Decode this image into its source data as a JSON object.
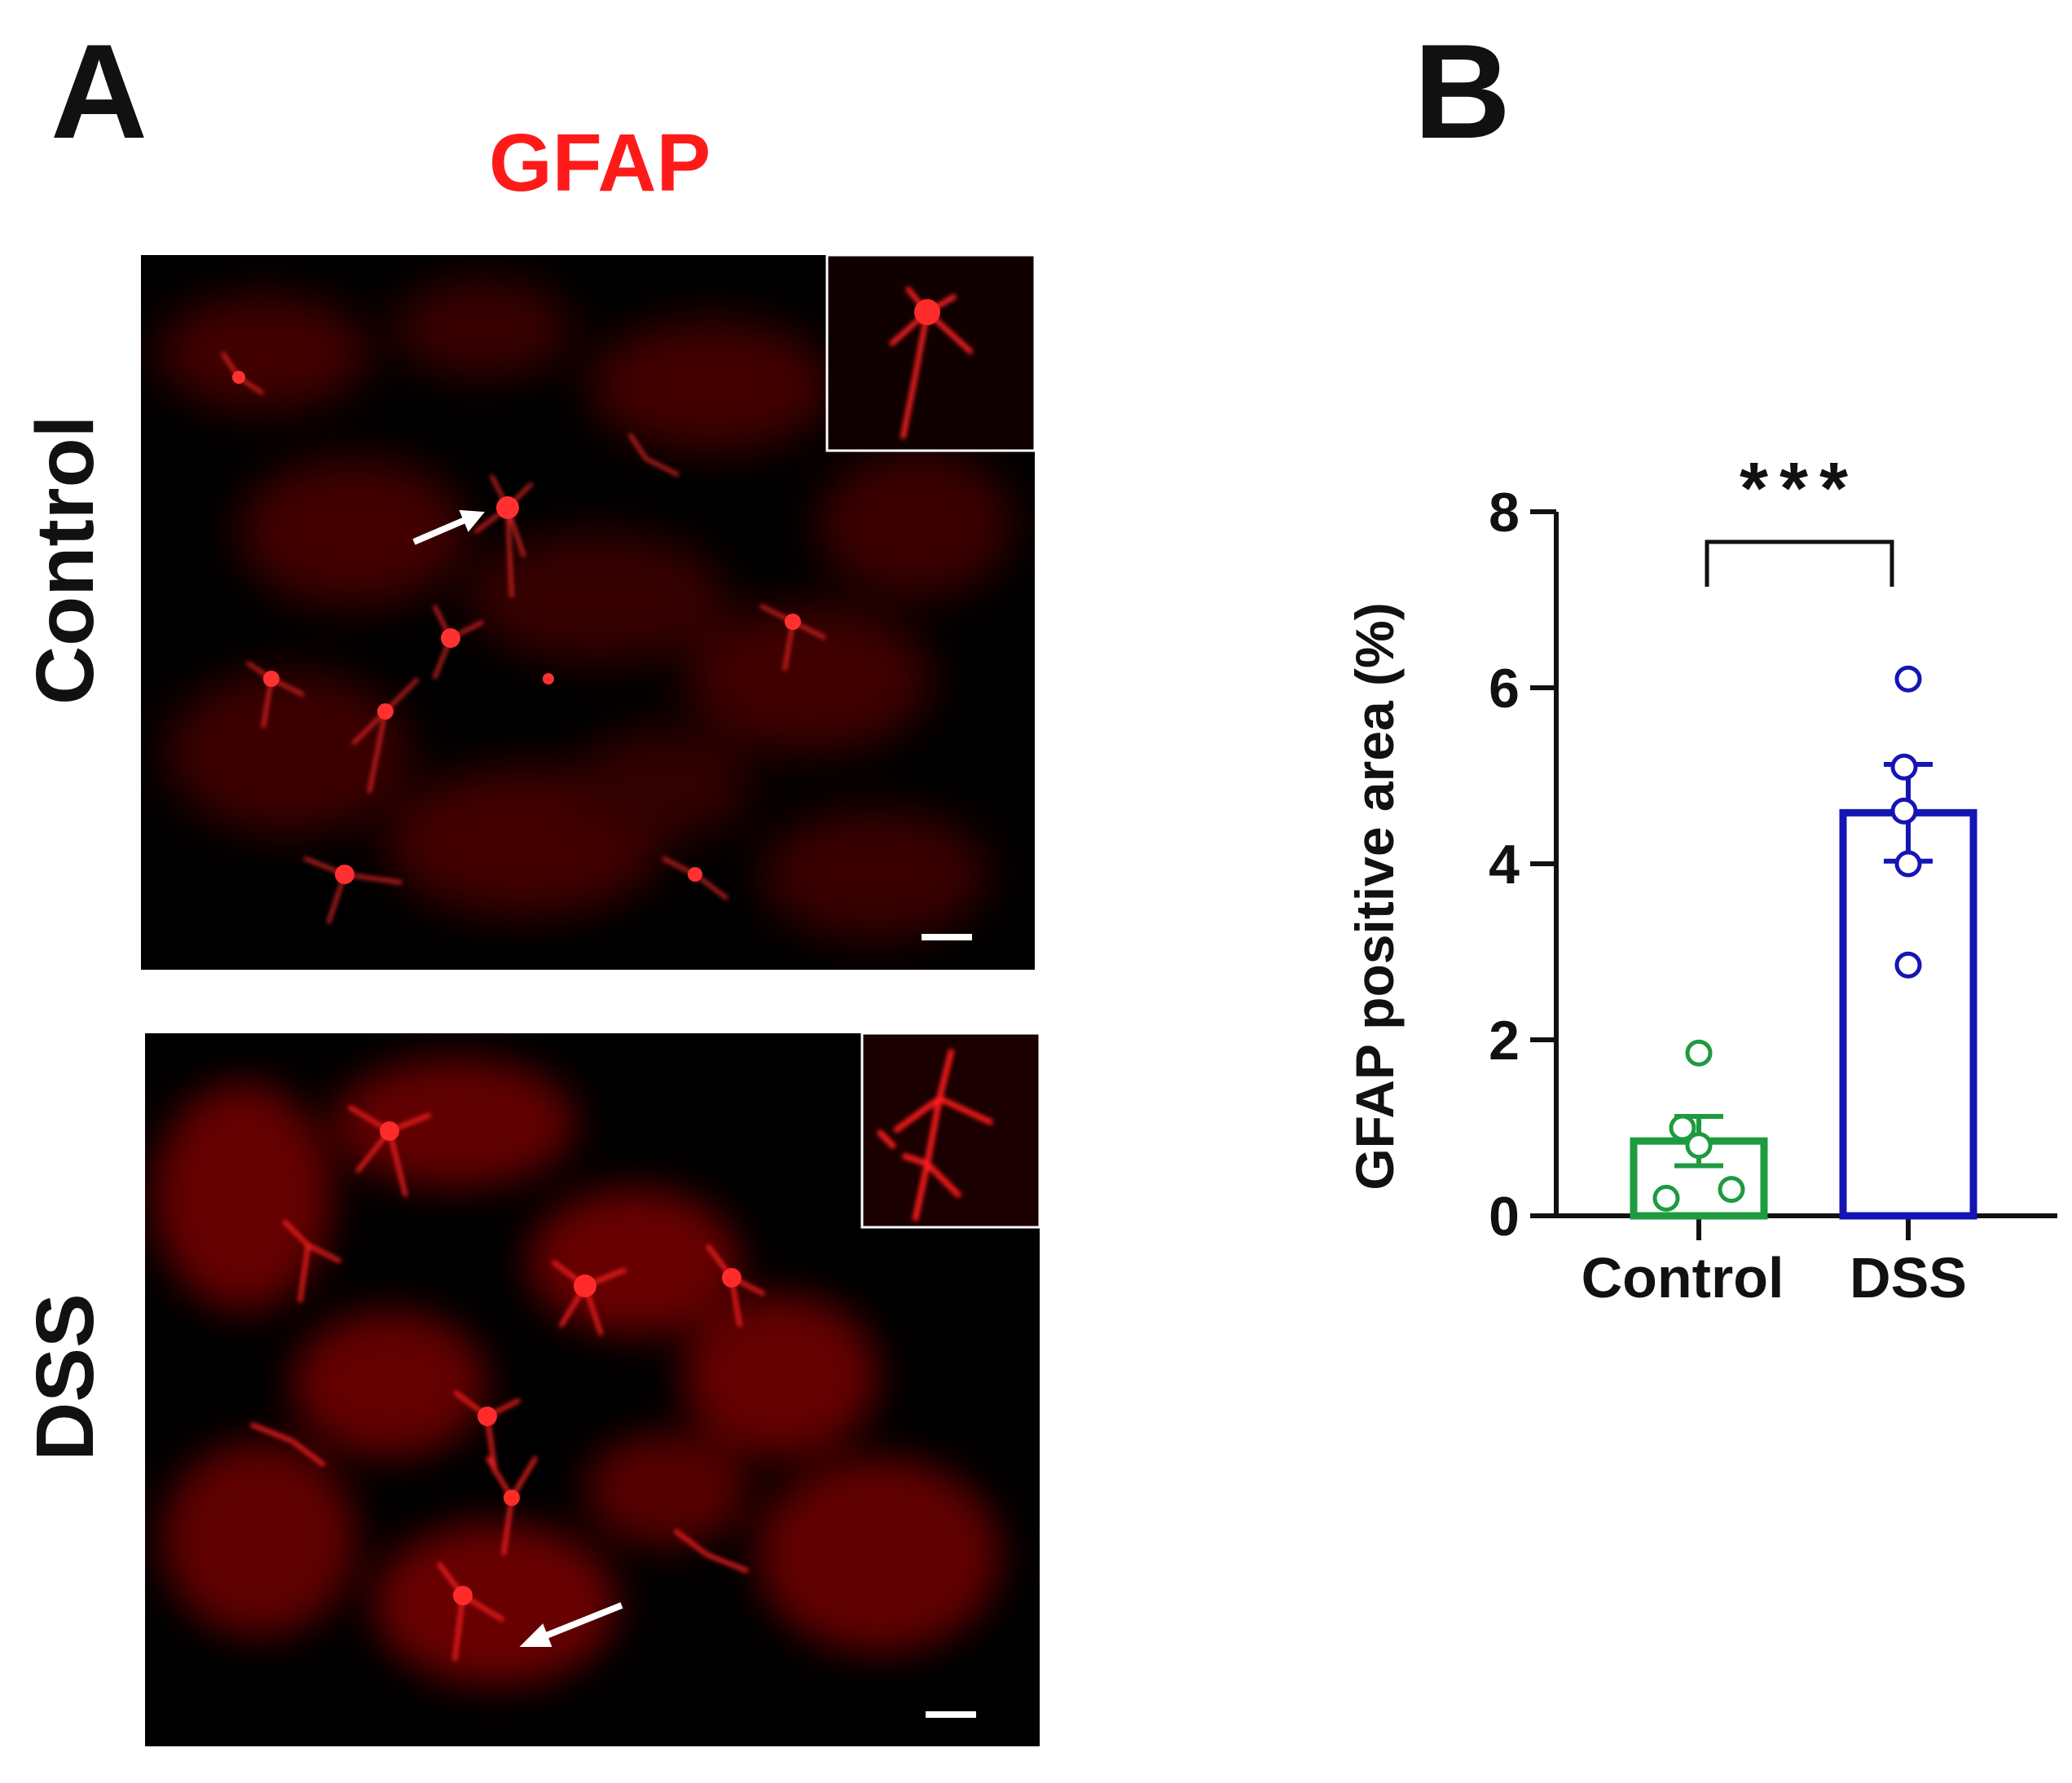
{
  "panels": {
    "a_letter": "A",
    "b_letter": "B"
  },
  "figure": {
    "stain_label": "GFAP",
    "stain_color": "#ff1a1a",
    "rows": [
      {
        "label": "Control"
      },
      {
        "label": "DSS"
      }
    ]
  },
  "chart_data": {
    "type": "bar",
    "categories": [
      "Control",
      "DSS"
    ],
    "values": [
      0.85,
      4.58
    ],
    "errors": [
      0.28,
      0.55
    ],
    "points": [
      [
        1.85,
        1.0,
        0.8,
        0.3,
        0.2
      ],
      [
        6.1,
        5.1,
        4.6,
        4.0,
        2.85
      ]
    ],
    "colors": [
      "#1e9a3f",
      "#1515b5"
    ],
    "title": "",
    "xlabel": "",
    "ylabel": "GFAP positive area (%)",
    "ylim": [
      0,
      8
    ],
    "yticks": [
      0,
      2,
      4,
      6,
      8
    ],
    "significance": "***",
    "grid": false
  }
}
